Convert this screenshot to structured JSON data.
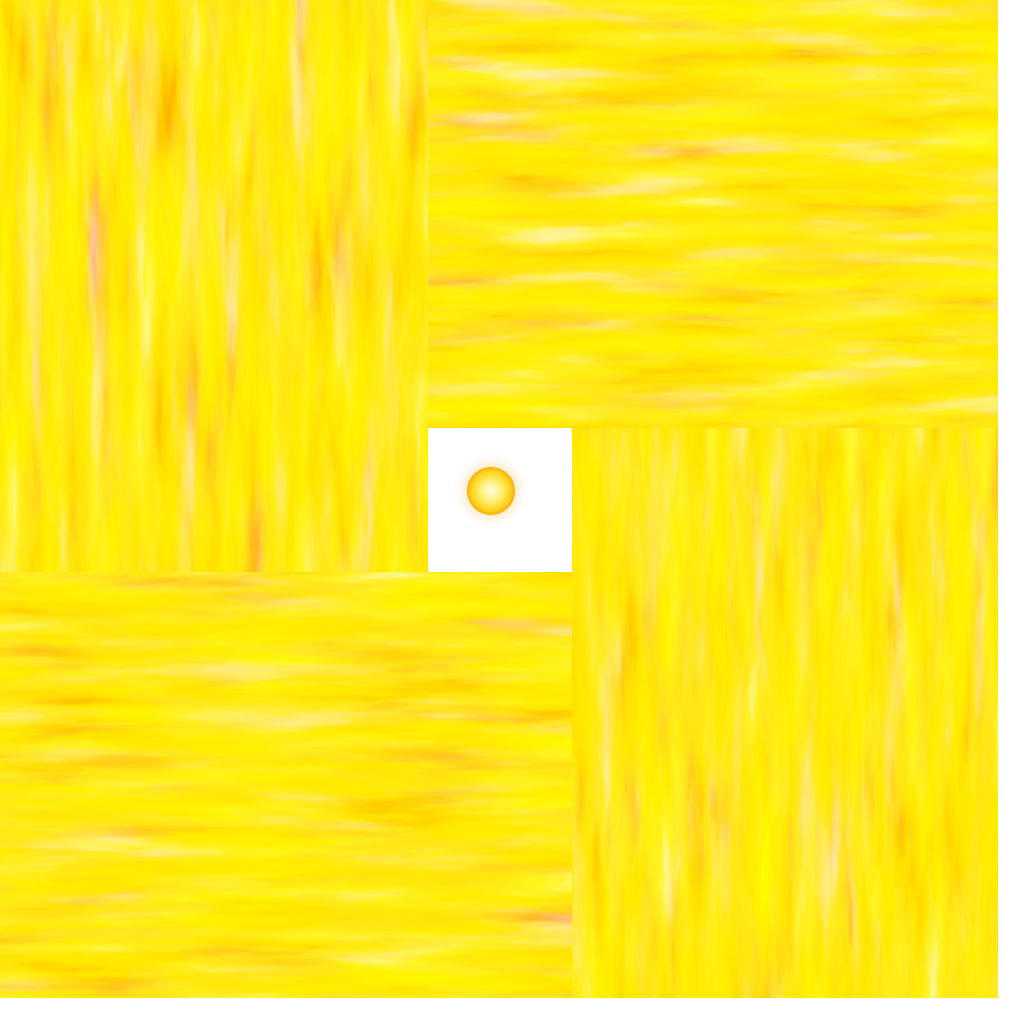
{
  "scene": {
    "description_free": true,
    "tiles": [
      {
        "id": "top-left",
        "orientation": "vertical"
      },
      {
        "id": "top-right",
        "orientation": "horizontal"
      },
      {
        "id": "bottom-right",
        "orientation": "vertical"
      },
      {
        "id": "bottom-left",
        "orientation": "horizontal"
      }
    ],
    "colors": {
      "white_hot": "#ffffff",
      "pale_yellow": "#fff8a0",
      "yellow": "#ffe600",
      "amber": "#ffb000",
      "orange": "#ff7a00",
      "red": "#e63010",
      "background": "#ffffff"
    },
    "center_icon": "glowing-orb-icon"
  }
}
